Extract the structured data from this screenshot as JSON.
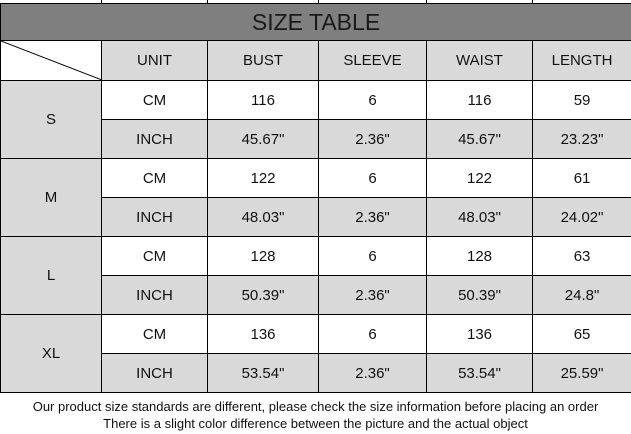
{
  "title": "SIZE TABLE",
  "headers": [
    "UNIT",
    "BUST",
    "SLEEVE",
    "WAIST",
    "LENGTH"
  ],
  "sizes": [
    {
      "size": "S",
      "cm": {
        "unit": "CM",
        "values": [
          "116",
          "6",
          "116",
          "59"
        ]
      },
      "inch": {
        "unit": "INCH",
        "values": [
          "45.67\"",
          "2.36\"",
          "45.67\"",
          "23.23\""
        ]
      }
    },
    {
      "size": "M",
      "cm": {
        "unit": "CM",
        "values": [
          "122",
          "6",
          "122",
          "61"
        ]
      },
      "inch": {
        "unit": "INCH",
        "values": [
          "48.03\"",
          "2.36\"",
          "48.03\"",
          "24.02\""
        ]
      }
    },
    {
      "size": "L",
      "cm": {
        "unit": "CM",
        "values": [
          "128",
          "6",
          "128",
          "63"
        ]
      },
      "inch": {
        "unit": "INCH",
        "values": [
          "50.39\"",
          "2.36\"",
          "50.39\"",
          "24.8\""
        ]
      }
    },
    {
      "size": "XL",
      "cm": {
        "unit": "CM",
        "values": [
          "136",
          "6",
          "136",
          "65"
        ]
      },
      "inch": {
        "unit": "INCH",
        "values": [
          "53.54\"",
          "2.36\"",
          "53.54\"",
          "25.59\""
        ]
      }
    }
  ],
  "footer": {
    "line1": "Our product size standards are different, please check the size information before placing an order",
    "line2": "There is a slight color difference between the picture and the actual object"
  }
}
